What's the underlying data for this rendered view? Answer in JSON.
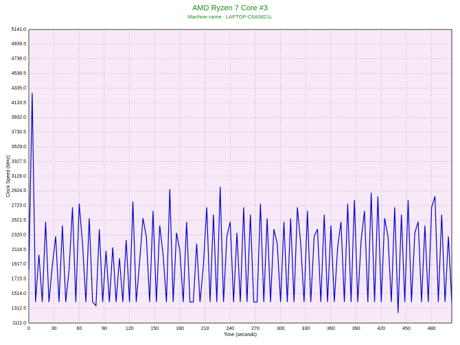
{
  "chart_data": {
    "type": "line",
    "title": "AMD Ryzen 7 Core #3",
    "subtitle": "Machine name : LAPTOP-C6A0821L",
    "xlabel": "Time (seconds)",
    "ylabel": "Clock Speed (MHz)",
    "xlim": [
      0,
      504
    ],
    "ylim": [
      1111,
      5141
    ],
    "xticks": [
      0,
      30,
      60,
      90,
      120,
      150,
      180,
      210,
      240,
      270,
      300,
      330,
      360,
      390,
      420,
      450,
      480
    ],
    "yticks": [
      {
        "value": 1111,
        "label": "1111.0"
      },
      1312.5,
      {
        "value": 1514,
        "label": "1514.0"
      },
      1715.5,
      {
        "value": 1917,
        "label": "1917.0"
      },
      2118.5,
      {
        "value": 2320,
        "label": "2320.0"
      },
      2521.5,
      {
        "value": 2723,
        "label": "2723.0"
      },
      2924.5,
      {
        "value": 3126,
        "label": "3126.0"
      },
      3327.5,
      {
        "value": 3529,
        "label": "3529.0"
      },
      3730.5,
      {
        "value": 3932,
        "label": "3932.0"
      },
      4133.5,
      {
        "value": 4335,
        "label": "4335.0"
      },
      4536.5,
      {
        "value": 4738,
        "label": "4738.0"
      },
      4939.5,
      {
        "value": 5141,
        "label": "5141.0"
      }
    ],
    "grid": true,
    "x": [
      0,
      4,
      8,
      12,
      16,
      20,
      24,
      28,
      32,
      36,
      40,
      44,
      48,
      52,
      56,
      60,
      64,
      68,
      72,
      76,
      80,
      84,
      88,
      92,
      96,
      100,
      104,
      108,
      112,
      116,
      120,
      124,
      128,
      132,
      136,
      140,
      144,
      148,
      152,
      156,
      160,
      164,
      168,
      172,
      176,
      180,
      184,
      188,
      192,
      196,
      200,
      204,
      208,
      212,
      216,
      220,
      224,
      228,
      232,
      236,
      240,
      244,
      248,
      252,
      256,
      260,
      264,
      268,
      272,
      276,
      280,
      284,
      288,
      292,
      296,
      300,
      304,
      308,
      312,
      316,
      320,
      324,
      328,
      332,
      336,
      340,
      344,
      348,
      352,
      356,
      360,
      364,
      368,
      372,
      376,
      380,
      384,
      388,
      392,
      396,
      400,
      404,
      408,
      412,
      416,
      420,
      424,
      428,
      432,
      436,
      440,
      444,
      448,
      452,
      456,
      460,
      464,
      468,
      472,
      476,
      480,
      484,
      488,
      492,
      496,
      500,
      504
    ],
    "series": [
      {
        "name": "Core #3",
        "color": "#0000cc",
        "values": [
          1850,
          4270,
          1400,
          2050,
          1400,
          2500,
          1400,
          1900,
          2300,
          1400,
          2450,
          1400,
          1850,
          2700,
          1400,
          2750,
          2200,
          1400,
          2550,
          1400,
          1350,
          2400,
          1400,
          2100,
          1400,
          2150,
          1400,
          2000,
          1400,
          2250,
          1400,
          2780,
          1400,
          1950,
          2550,
          2300,
          1400,
          2650,
          1400,
          2450,
          2050,
          1400,
          2950,
          1400,
          2350,
          2100,
          1400,
          2500,
          1400,
          1400,
          2200,
          1400,
          1900,
          2700,
          1400,
          2600,
          1400,
          2980,
          1400,
          2300,
          2500,
          1400,
          2350,
          1400,
          2700,
          1400,
          2600,
          1400,
          1400,
          2750,
          1400,
          2550,
          1400,
          2400,
          2200,
          1400,
          2500,
          1400,
          2550,
          1400,
          2700,
          2200,
          1400,
          2650,
          1400,
          2300,
          2400,
          1400,
          2600,
          1400,
          2450,
          1400,
          2150,
          2500,
          1400,
          2750,
          1400,
          2800,
          1400,
          2250,
          2650,
          1400,
          2900,
          1400,
          2850,
          1400,
          2550,
          2300,
          1400,
          2700,
          1250,
          2600,
          1400,
          2800,
          1400,
          2350,
          2500,
          1400,
          2450,
          1400,
          2700,
          2850,
          1400,
          2600,
          1400,
          2300,
          1400
        ]
      }
    ]
  }
}
